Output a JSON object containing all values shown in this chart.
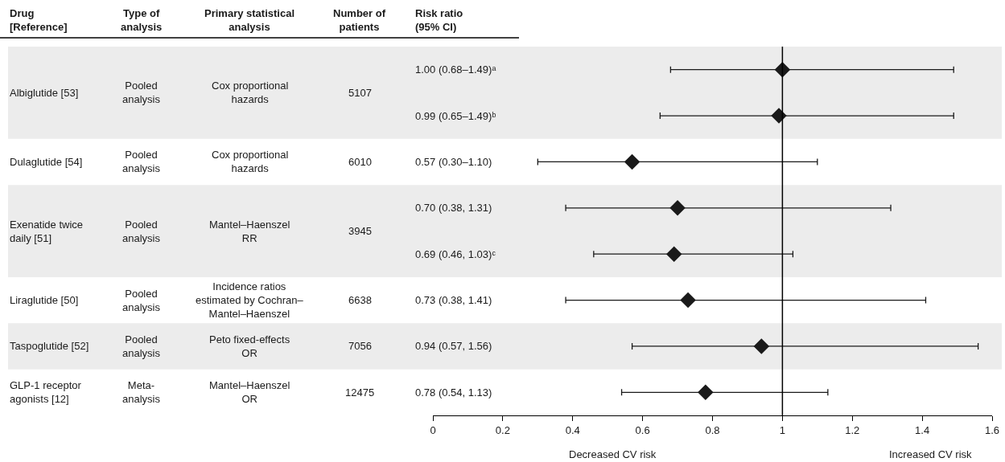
{
  "chart_data": {
    "type": "scatter",
    "orientation": "horizontal",
    "marker": "diamond",
    "color": "#1a1a1a",
    "tick_labels": "x",
    "categories": [
      null,
      null,
      null,
      null,
      null,
      null,
      null,
      null
    ],
    "values": [
      1.0,
      0.99,
      0.57,
      0.7,
      0.69,
      0.73,
      0.94,
      0.78
    ],
    "errors": [
      [
        0.68,
        1.49
      ],
      [
        0.65,
        1.49
      ],
      [
        0.3,
        1.1
      ],
      [
        0.38,
        1.31
      ],
      [
        0.46,
        1.03
      ],
      [
        0.38,
        1.41
      ],
      [
        0.57,
        1.56
      ],
      [
        0.54,
        1.13
      ]
    ],
    "xlim": [
      0,
      1.6
    ],
    "xticks": [
      0,
      0.2,
      0.4,
      0.6,
      0.8,
      1.0,
      1.2,
      1.4,
      1.6
    ],
    "ref_lines": [
      {
        "axis": "x",
        "value": 1,
        "color": "#000000"
      }
    ],
    "annotations": [
      "Drug\n[Reference]",
      "Type of\nanalysis",
      "Primary statistical\nanalysis",
      "Number of\npatients",
      "Risk ratio\n(95% CI)",
      "Albiglutide [53]",
      "Pooled\nanalysis",
      "Cox proportional\nhazards",
      "5107",
      "Dulaglutide [54]",
      "Pooled\nanalysis",
      "Cox proportional\nhazards",
      "6010",
      "Exenatide twice\ndaily [51]",
      "Pooled\nanalysis",
      "Mantel–Haenszel\nRR",
      "3945",
      "Liraglutide [50]",
      "Pooled\nanalysis",
      "Incidence ratios\nestimated by Cochran–\nMantel–Haenszel",
      "6638",
      "Taspoglutide [52]",
      "Pooled\nanalysis",
      "Peto fixed-effects\nOR",
      "7056",
      "GLP-1 receptor\nagonists [12]",
      "Meta-\nanalysis",
      "Mantel–Haenszel\nOR",
      "12475",
      "1.00 (0.68–1.49)ᵃ",
      "0.99 (0.65–1.49)ᵇ",
      "0.57 (0.30–1.10)",
      "0.70 (0.38, 1.31)",
      "0.69 (0.46, 1.03)ᶜ",
      "0.73 (0.38, 1.41)",
      "0.94 (0.57, 1.56)",
      "0.78 (0.54, 1.13)",
      "Decreased CV risk",
      "Increased CV risk"
    ]
  }
}
